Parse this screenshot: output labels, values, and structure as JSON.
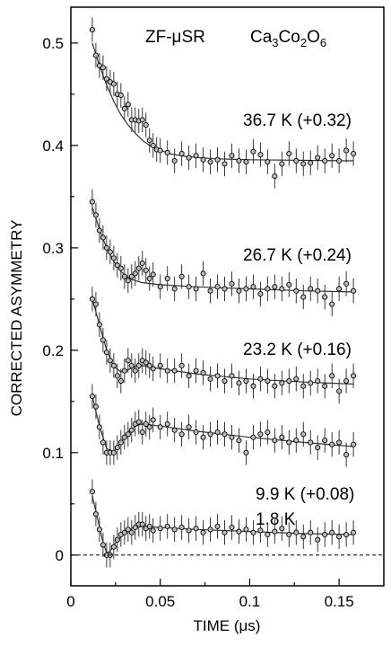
{
  "chart_data": {
    "type": "scatter",
    "title": "ZF-μSR",
    "compound_parts": [
      {
        "t": "Ca",
        "sub": false
      },
      {
        "t": "3",
        "sub": true
      },
      {
        "t": "Co",
        "sub": false
      },
      {
        "t": "2",
        "sub": true
      },
      {
        "t": "O",
        "sub": false
      },
      {
        "t": "6",
        "sub": true
      }
    ],
    "xlabel": "TIME (μs)",
    "ylabel": "CORRECTED ASYMMETRY",
    "xlim": [
      0,
      0.175
    ],
    "ylim": [
      -0.03,
      0.535
    ],
    "xticks": [
      0,
      0.05,
      0.1,
      0.15
    ],
    "xtick_labels": [
      "0",
      "0.05",
      "0.1",
      "0.15"
    ],
    "yticks": [
      0,
      0.1,
      0.2,
      0.3,
      0.4,
      0.5
    ],
    "ytick_labels": [
      "0",
      "0.1",
      "0.2",
      "0.3",
      "0.4",
      "0.5"
    ],
    "grid": false,
    "baseline_y": 0,
    "series": [
      {
        "name": "36.7 K (+0.32)",
        "points": [
          [
            0.012,
            0.513
          ],
          [
            0.014,
            0.488
          ],
          [
            0.016,
            0.478
          ],
          [
            0.018,
            0.476
          ],
          [
            0.02,
            0.465
          ],
          [
            0.022,
            0.462
          ],
          [
            0.024,
            0.46
          ],
          [
            0.026,
            0.45
          ],
          [
            0.028,
            0.449
          ],
          [
            0.03,
            0.436
          ],
          [
            0.032,
            0.44
          ],
          [
            0.034,
            0.425
          ],
          [
            0.036,
            0.425
          ],
          [
            0.038,
            0.424
          ],
          [
            0.04,
            0.425
          ],
          [
            0.042,
            0.42
          ],
          [
            0.044,
            0.405
          ],
          [
            0.046,
            0.4
          ],
          [
            0.048,
            0.396
          ],
          [
            0.05,
            0.395
          ],
          [
            0.054,
            0.393
          ],
          [
            0.058,
            0.385
          ],
          [
            0.062,
            0.392
          ],
          [
            0.066,
            0.388
          ],
          [
            0.07,
            0.39
          ],
          [
            0.074,
            0.386
          ],
          [
            0.078,
            0.384
          ],
          [
            0.082,
            0.386
          ],
          [
            0.086,
            0.382
          ],
          [
            0.09,
            0.39
          ],
          [
            0.094,
            0.385
          ],
          [
            0.098,
            0.384
          ],
          [
            0.102,
            0.394
          ],
          [
            0.106,
            0.391
          ],
          [
            0.11,
            0.384
          ],
          [
            0.114,
            0.37
          ],
          [
            0.118,
            0.382
          ],
          [
            0.122,
            0.392
          ],
          [
            0.126,
            0.385
          ],
          [
            0.13,
            0.382
          ],
          [
            0.134,
            0.383
          ],
          [
            0.138,
            0.388
          ],
          [
            0.142,
            0.385
          ],
          [
            0.146,
            0.39
          ],
          [
            0.15,
            0.385
          ],
          [
            0.154,
            0.395
          ],
          [
            0.158,
            0.392
          ]
        ],
        "fit": [
          [
            0.012,
            0.5
          ],
          [
            0.016,
            0.478
          ],
          [
            0.02,
            0.459
          ],
          [
            0.024,
            0.443
          ],
          [
            0.028,
            0.43
          ],
          [
            0.032,
            0.42
          ],
          [
            0.036,
            0.412
          ],
          [
            0.04,
            0.405
          ],
          [
            0.044,
            0.4
          ],
          [
            0.048,
            0.397
          ],
          [
            0.055,
            0.392
          ],
          [
            0.065,
            0.389
          ],
          [
            0.08,
            0.387
          ],
          [
            0.1,
            0.386
          ],
          [
            0.158,
            0.385
          ]
        ]
      },
      {
        "name": "26.7 K (+0.24)",
        "points": [
          [
            0.012,
            0.345
          ],
          [
            0.014,
            0.332
          ],
          [
            0.016,
            0.317
          ],
          [
            0.018,
            0.31
          ],
          [
            0.02,
            0.3
          ],
          [
            0.022,
            0.296
          ],
          [
            0.024,
            0.29
          ],
          [
            0.026,
            0.283
          ],
          [
            0.028,
            0.28
          ],
          [
            0.03,
            0.272
          ],
          [
            0.032,
            0.268
          ],
          [
            0.034,
            0.272
          ],
          [
            0.036,
            0.275
          ],
          [
            0.038,
            0.28
          ],
          [
            0.04,
            0.285
          ],
          [
            0.042,
            0.278
          ],
          [
            0.044,
            0.27
          ],
          [
            0.046,
            0.274
          ],
          [
            0.05,
            0.262
          ],
          [
            0.054,
            0.27
          ],
          [
            0.058,
            0.26
          ],
          [
            0.062,
            0.272
          ],
          [
            0.066,
            0.262
          ],
          [
            0.07,
            0.26
          ],
          [
            0.074,
            0.275
          ],
          [
            0.078,
            0.258
          ],
          [
            0.082,
            0.262
          ],
          [
            0.086,
            0.26
          ],
          [
            0.09,
            0.265
          ],
          [
            0.094,
            0.258
          ],
          [
            0.098,
            0.26
          ],
          [
            0.102,
            0.262
          ],
          [
            0.106,
            0.255
          ],
          [
            0.11,
            0.26
          ],
          [
            0.114,
            0.262
          ],
          [
            0.118,
            0.26
          ],
          [
            0.122,
            0.264
          ],
          [
            0.126,
            0.258
          ],
          [
            0.13,
            0.252
          ],
          [
            0.134,
            0.26
          ],
          [
            0.138,
            0.258
          ],
          [
            0.142,
            0.252
          ],
          [
            0.146,
            0.245
          ],
          [
            0.15,
            0.26
          ],
          [
            0.154,
            0.265
          ],
          [
            0.158,
            0.258
          ]
        ],
        "fit": [
          [
            0.012,
            0.34
          ],
          [
            0.016,
            0.318
          ],
          [
            0.02,
            0.3
          ],
          [
            0.024,
            0.287
          ],
          [
            0.028,
            0.277
          ],
          [
            0.032,
            0.271
          ],
          [
            0.036,
            0.268
          ],
          [
            0.04,
            0.266
          ],
          [
            0.05,
            0.264
          ],
          [
            0.07,
            0.262
          ],
          [
            0.1,
            0.26
          ],
          [
            0.13,
            0.258
          ],
          [
            0.158,
            0.257
          ]
        ]
      },
      {
        "name": "23.2 K (+0.16)",
        "points": [
          [
            0.012,
            0.25
          ],
          [
            0.014,
            0.245
          ],
          [
            0.016,
            0.225
          ],
          [
            0.018,
            0.21
          ],
          [
            0.02,
            0.198
          ],
          [
            0.022,
            0.19
          ],
          [
            0.024,
            0.185
          ],
          [
            0.026,
            0.175
          ],
          [
            0.028,
            0.17
          ],
          [
            0.03,
            0.18
          ],
          [
            0.032,
            0.19
          ],
          [
            0.034,
            0.185
          ],
          [
            0.036,
            0.18
          ],
          [
            0.038,
            0.185
          ],
          [
            0.04,
            0.19
          ],
          [
            0.042,
            0.188
          ],
          [
            0.044,
            0.185
          ],
          [
            0.046,
            0.182
          ],
          [
            0.05,
            0.185
          ],
          [
            0.054,
            0.18
          ],
          [
            0.058,
            0.18
          ],
          [
            0.062,
            0.185
          ],
          [
            0.066,
            0.175
          ],
          [
            0.07,
            0.18
          ],
          [
            0.074,
            0.178
          ],
          [
            0.078,
            0.172
          ],
          [
            0.082,
            0.175
          ],
          [
            0.086,
            0.17
          ],
          [
            0.09,
            0.175
          ],
          [
            0.094,
            0.168
          ],
          [
            0.098,
            0.17
          ],
          [
            0.102,
            0.165
          ],
          [
            0.106,
            0.172
          ],
          [
            0.11,
            0.17
          ],
          [
            0.114,
            0.165
          ],
          [
            0.118,
            0.168
          ],
          [
            0.122,
            0.17
          ],
          [
            0.126,
            0.172
          ],
          [
            0.13,
            0.165
          ],
          [
            0.134,
            0.168
          ],
          [
            0.138,
            0.17
          ],
          [
            0.142,
            0.165
          ],
          [
            0.146,
            0.175
          ],
          [
            0.15,
            0.16
          ],
          [
            0.154,
            0.17
          ],
          [
            0.158,
            0.175
          ]
        ],
        "fit": [
          [
            0.012,
            0.25
          ],
          [
            0.016,
            0.225
          ],
          [
            0.02,
            0.2
          ],
          [
            0.024,
            0.184
          ],
          [
            0.028,
            0.179
          ],
          [
            0.032,
            0.181
          ],
          [
            0.036,
            0.184
          ],
          [
            0.04,
            0.185
          ],
          [
            0.05,
            0.182
          ],
          [
            0.07,
            0.177
          ],
          [
            0.1,
            0.172
          ],
          [
            0.13,
            0.169
          ],
          [
            0.158,
            0.167
          ]
        ]
      },
      {
        "name": "9.9 K (+0.08)",
        "points": [
          [
            0.012,
            0.155
          ],
          [
            0.014,
            0.145
          ],
          [
            0.016,
            0.125
          ],
          [
            0.018,
            0.11
          ],
          [
            0.02,
            0.1
          ],
          [
            0.022,
            0.1
          ],
          [
            0.024,
            0.1
          ],
          [
            0.026,
            0.105
          ],
          [
            0.028,
            0.11
          ],
          [
            0.03,
            0.115
          ],
          [
            0.032,
            0.118
          ],
          [
            0.034,
            0.122
          ],
          [
            0.036,
            0.128
          ],
          [
            0.038,
            0.13
          ],
          [
            0.04,
            0.12
          ],
          [
            0.042,
            0.128
          ],
          [
            0.044,
            0.125
          ],
          [
            0.046,
            0.132
          ],
          [
            0.05,
            0.125
          ],
          [
            0.054,
            0.128
          ],
          [
            0.058,
            0.122
          ],
          [
            0.062,
            0.118
          ],
          [
            0.066,
            0.125
          ],
          [
            0.07,
            0.12
          ],
          [
            0.074,
            0.115
          ],
          [
            0.078,
            0.118
          ],
          [
            0.082,
            0.12
          ],
          [
            0.086,
            0.118
          ],
          [
            0.09,
            0.115
          ],
          [
            0.094,
            0.112
          ],
          [
            0.098,
            0.1
          ],
          [
            0.102,
            0.115
          ],
          [
            0.106,
            0.118
          ],
          [
            0.11,
            0.12
          ],
          [
            0.114,
            0.112
          ],
          [
            0.118,
            0.115
          ],
          [
            0.122,
            0.11
          ],
          [
            0.126,
            0.112
          ],
          [
            0.13,
            0.118
          ],
          [
            0.134,
            0.11
          ],
          [
            0.138,
            0.105
          ],
          [
            0.142,
            0.112
          ],
          [
            0.146,
            0.108
          ],
          [
            0.15,
            0.11
          ],
          [
            0.154,
            0.098
          ],
          [
            0.158,
            0.108
          ]
        ],
        "fit": [
          [
            0.012,
            0.155
          ],
          [
            0.016,
            0.126
          ],
          [
            0.02,
            0.104
          ],
          [
            0.024,
            0.101
          ],
          [
            0.028,
            0.11
          ],
          [
            0.032,
            0.12
          ],
          [
            0.036,
            0.126
          ],
          [
            0.04,
            0.128
          ],
          [
            0.05,
            0.126
          ],
          [
            0.07,
            0.121
          ],
          [
            0.1,
            0.115
          ],
          [
            0.13,
            0.11
          ],
          [
            0.158,
            0.106
          ]
        ]
      },
      {
        "name": "1.8 K",
        "points": [
          [
            0.012,
            0.062
          ],
          [
            0.014,
            0.04
          ],
          [
            0.016,
            0.025
          ],
          [
            0.018,
            0.01
          ],
          [
            0.02,
            0.0
          ],
          [
            0.022,
            0.0
          ],
          [
            0.024,
            0.008
          ],
          [
            0.026,
            0.015
          ],
          [
            0.028,
            0.02
          ],
          [
            0.03,
            0.022
          ],
          [
            0.032,
            0.025
          ],
          [
            0.034,
            0.022
          ],
          [
            0.036,
            0.027
          ],
          [
            0.038,
            0.03
          ],
          [
            0.04,
            0.03
          ],
          [
            0.042,
            0.026
          ],
          [
            0.044,
            0.028
          ],
          [
            0.046,
            0.024
          ],
          [
            0.05,
            0.026
          ],
          [
            0.054,
            0.028
          ],
          [
            0.058,
            0.025
          ],
          [
            0.062,
            0.027
          ],
          [
            0.066,
            0.024
          ],
          [
            0.07,
            0.026
          ],
          [
            0.074,
            0.022
          ],
          [
            0.078,
            0.025
          ],
          [
            0.082,
            0.028
          ],
          [
            0.086,
            0.022
          ],
          [
            0.09,
            0.027
          ],
          [
            0.094,
            0.023
          ],
          [
            0.098,
            0.025
          ],
          [
            0.102,
            0.022
          ],
          [
            0.106,
            0.024
          ],
          [
            0.11,
            0.02
          ],
          [
            0.114,
            0.023
          ],
          [
            0.118,
            0.026
          ],
          [
            0.122,
            0.02
          ],
          [
            0.126,
            0.022
          ],
          [
            0.13,
            0.018
          ],
          [
            0.134,
            0.022
          ],
          [
            0.138,
            0.015
          ],
          [
            0.142,
            0.02
          ],
          [
            0.146,
            0.022
          ],
          [
            0.15,
            0.018
          ],
          [
            0.154,
            0.02
          ],
          [
            0.158,
            0.022
          ]
        ],
        "fit": [
          [
            0.012,
            0.058
          ],
          [
            0.015,
            0.035
          ],
          [
            0.018,
            0.012
          ],
          [
            0.02,
            0.002
          ],
          [
            0.022,
            0.004
          ],
          [
            0.025,
            0.012
          ],
          [
            0.03,
            0.022
          ],
          [
            0.035,
            0.027
          ],
          [
            0.04,
            0.028
          ],
          [
            0.05,
            0.027
          ],
          [
            0.07,
            0.025
          ],
          [
            0.1,
            0.023
          ],
          [
            0.13,
            0.021
          ],
          [
            0.158,
            0.02
          ]
        ]
      }
    ],
    "error_bar": 0.012
  }
}
